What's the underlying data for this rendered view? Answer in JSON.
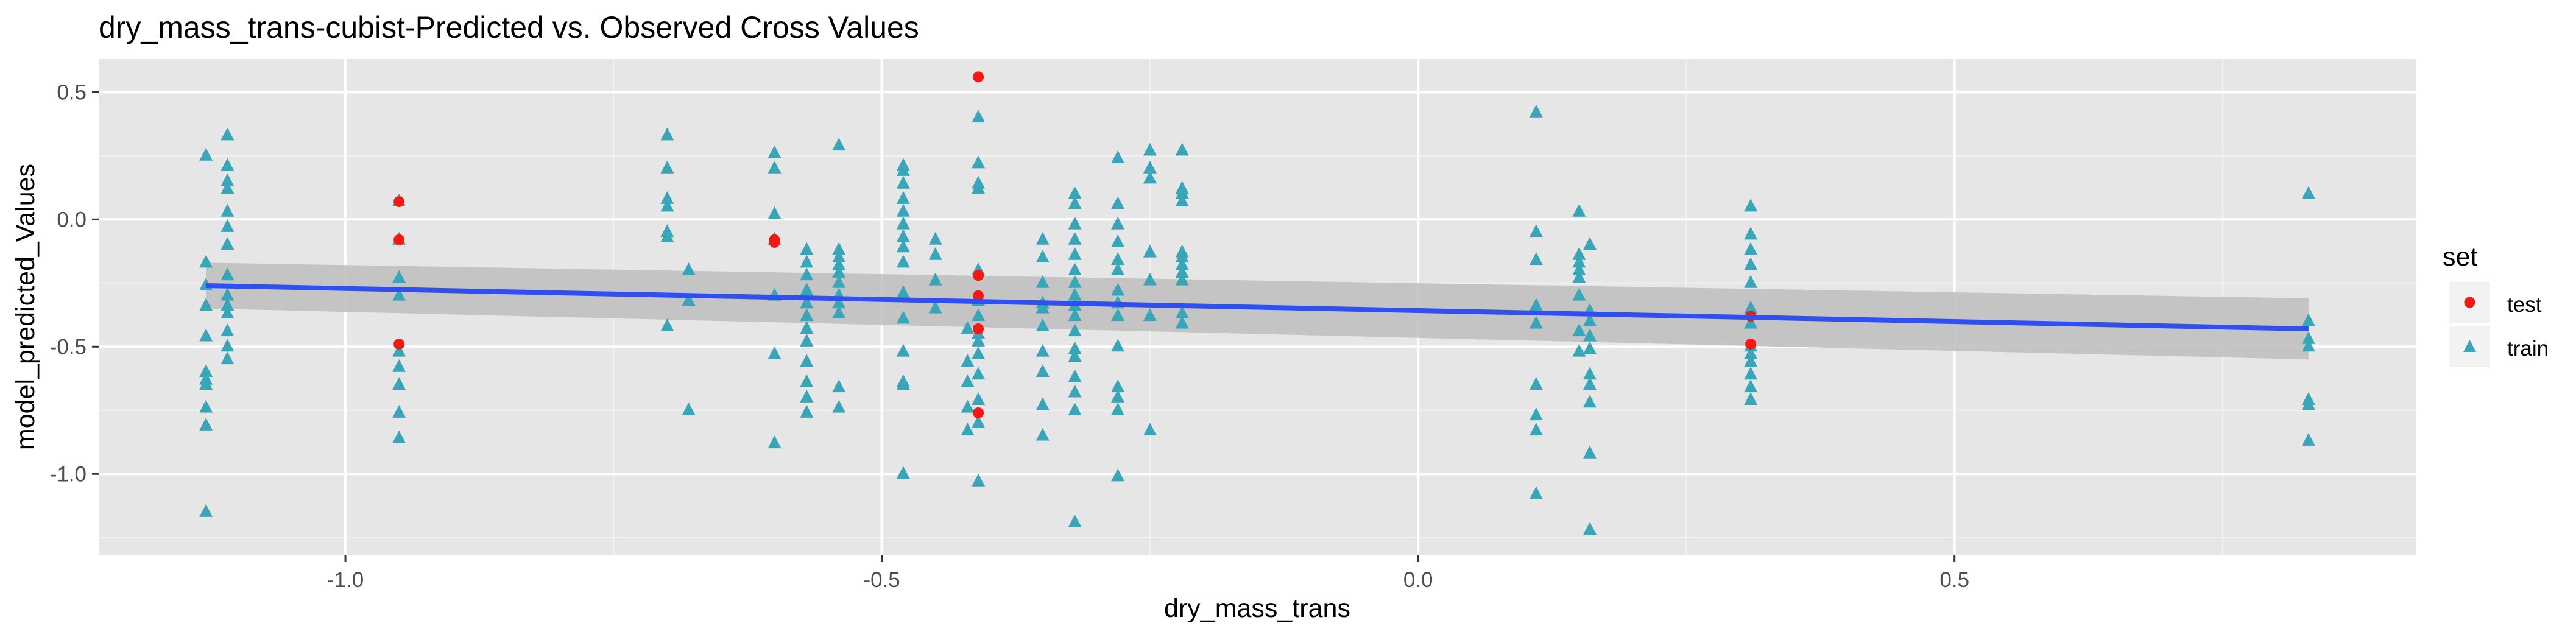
{
  "chart_data": {
    "type": "scatter",
    "title": "dry_mass_trans-cubist-Predicted vs. Observed Cross Values",
    "xlabel": "dry_mass_trans",
    "ylabel": "model_predicted_Values",
    "xlim": [
      -1.23,
      0.93
    ],
    "ylim": [
      -1.32,
      0.63
    ],
    "x_ticks": [
      -1.0,
      -0.5,
      0.0,
      0.5
    ],
    "x_tick_labels": [
      "-1.0",
      "-0.5",
      "0.0",
      "0.5"
    ],
    "y_ticks": [
      0.5,
      0.0,
      -0.5,
      -1.0
    ],
    "y_tick_labels": [
      "0.5",
      "0.0",
      "-0.5",
      "-1.0"
    ],
    "grid": true,
    "legend": {
      "title": "set",
      "position": "right",
      "entries": [
        {
          "label": "test",
          "shape": "circle",
          "color": "#F8180F"
        },
        {
          "label": "train",
          "shape": "triangle",
          "color": "#37A6B8"
        }
      ]
    },
    "colors": {
      "panel_background": "#E6E6E6",
      "grid": "#FFFFFF",
      "test": "#F8180F",
      "train": "#37A6B8",
      "trend_line": "#2F4FF0",
      "confidence_band": "#BDBDBD"
    },
    "trend": {
      "method": "linear",
      "x": [
        -1.13,
        0.83
      ],
      "y": [
        -0.26,
        -0.43
      ],
      "se_lower": [
        -0.35,
        -0.55
      ],
      "se_upper": [
        -0.17,
        -0.31
      ]
    },
    "series": [
      {
        "name": "train",
        "marker": "triangle",
        "points": [
          [
            -1.13,
            0.25
          ],
          [
            -1.13,
            -0.17
          ],
          [
            -1.13,
            -0.26
          ],
          [
            -1.13,
            -0.34
          ],
          [
            -1.13,
            -0.46
          ],
          [
            -1.13,
            -0.6
          ],
          [
            -1.13,
            -0.63
          ],
          [
            -1.13,
            -0.65
          ],
          [
            -1.13,
            -0.74
          ],
          [
            -1.13,
            -0.81
          ],
          [
            -1.13,
            -1.15
          ],
          [
            -1.11,
            0.33
          ],
          [
            -1.11,
            0.21
          ],
          [
            -1.11,
            0.15
          ],
          [
            -1.11,
            0.12
          ],
          [
            -1.11,
            0.03
          ],
          [
            -1.11,
            -0.03
          ],
          [
            -1.11,
            -0.1
          ],
          [
            -1.11,
            -0.22
          ],
          [
            -1.11,
            -0.3
          ],
          [
            -1.11,
            -0.34
          ],
          [
            -1.11,
            -0.37
          ],
          [
            -1.11,
            -0.44
          ],
          [
            -1.11,
            -0.5
          ],
          [
            -1.11,
            -0.55
          ],
          [
            -0.95,
            0.07
          ],
          [
            -0.95,
            -0.08
          ],
          [
            -0.95,
            -0.23
          ],
          [
            -0.95,
            -0.3
          ],
          [
            -0.95,
            -0.52
          ],
          [
            -0.95,
            -0.58
          ],
          [
            -0.95,
            -0.65
          ],
          [
            -0.95,
            -0.76
          ],
          [
            -0.95,
            -0.86
          ],
          [
            -0.7,
            0.33
          ],
          [
            -0.7,
            0.2
          ],
          [
            -0.7,
            0.08
          ],
          [
            -0.7,
            0.05
          ],
          [
            -0.7,
            -0.05
          ],
          [
            -0.7,
            -0.07
          ],
          [
            -0.7,
            -0.42
          ],
          [
            -0.68,
            -0.2
          ],
          [
            -0.68,
            -0.32
          ],
          [
            -0.68,
            -0.75
          ],
          [
            -0.6,
            0.26
          ],
          [
            -0.6,
            0.2
          ],
          [
            -0.6,
            0.02
          ],
          [
            -0.6,
            -0.08
          ],
          [
            -0.6,
            -0.3
          ],
          [
            -0.6,
            -0.53
          ],
          [
            -0.6,
            -0.88
          ],
          [
            -0.57,
            -0.12
          ],
          [
            -0.57,
            -0.17
          ],
          [
            -0.57,
            -0.22
          ],
          [
            -0.57,
            -0.28
          ],
          [
            -0.57,
            -0.33
          ],
          [
            -0.57,
            -0.38
          ],
          [
            -0.57,
            -0.43
          ],
          [
            -0.57,
            -0.48
          ],
          [
            -0.57,
            -0.56
          ],
          [
            -0.57,
            -0.64
          ],
          [
            -0.57,
            -0.7
          ],
          [
            -0.57,
            -0.76
          ],
          [
            -0.54,
            0.29
          ],
          [
            -0.54,
            -0.12
          ],
          [
            -0.54,
            -0.15
          ],
          [
            -0.54,
            -0.18
          ],
          [
            -0.54,
            -0.21
          ],
          [
            -0.54,
            -0.25
          ],
          [
            -0.54,
            -0.3
          ],
          [
            -0.54,
            -0.33
          ],
          [
            -0.54,
            -0.37
          ],
          [
            -0.54,
            -0.66
          ],
          [
            -0.54,
            -0.74
          ],
          [
            -0.48,
            0.21
          ],
          [
            -0.48,
            0.19
          ],
          [
            -0.48,
            0.14
          ],
          [
            -0.48,
            0.08
          ],
          [
            -0.48,
            0.03
          ],
          [
            -0.48,
            -0.02
          ],
          [
            -0.48,
            -0.07
          ],
          [
            -0.48,
            -0.11
          ],
          [
            -0.48,
            -0.17
          ],
          [
            -0.48,
            -0.29
          ],
          [
            -0.48,
            -0.39
          ],
          [
            -0.48,
            -0.52
          ],
          [
            -0.48,
            -0.64
          ],
          [
            -0.48,
            -0.65
          ],
          [
            -0.48,
            -1.0
          ],
          [
            -0.45,
            -0.08
          ],
          [
            -0.45,
            -0.14
          ],
          [
            -0.45,
            -0.24
          ],
          [
            -0.45,
            -0.35
          ],
          [
            -0.41,
            0.4
          ],
          [
            -0.41,
            0.22
          ],
          [
            -0.41,
            0.14
          ],
          [
            -0.41,
            0.12
          ],
          [
            -0.41,
            -0.2
          ],
          [
            -0.41,
            -0.32
          ],
          [
            -0.41,
            -0.38
          ],
          [
            -0.41,
            -0.45
          ],
          [
            -0.41,
            -0.48
          ],
          [
            -0.41,
            -0.53
          ],
          [
            -0.41,
            -0.61
          ],
          [
            -0.41,
            -0.71
          ],
          [
            -0.41,
            -0.8
          ],
          [
            -0.41,
            -1.03
          ],
          [
            -0.42,
            -0.43
          ],
          [
            -0.42,
            -0.56
          ],
          [
            -0.42,
            -0.64
          ],
          [
            -0.42,
            -0.74
          ],
          [
            -0.42,
            -0.83
          ],
          [
            -0.35,
            -0.08
          ],
          [
            -0.35,
            -0.15
          ],
          [
            -0.35,
            -0.25
          ],
          [
            -0.35,
            -0.33
          ],
          [
            -0.35,
            -0.35
          ],
          [
            -0.35,
            -0.42
          ],
          [
            -0.35,
            -0.52
          ],
          [
            -0.35,
            -0.6
          ],
          [
            -0.35,
            -0.73
          ],
          [
            -0.35,
            -0.85
          ],
          [
            -0.32,
            0.1
          ],
          [
            -0.32,
            0.06
          ],
          [
            -0.32,
            -0.02
          ],
          [
            -0.32,
            -0.08
          ],
          [
            -0.32,
            -0.14
          ],
          [
            -0.32,
            -0.2
          ],
          [
            -0.32,
            -0.25
          ],
          [
            -0.32,
            -0.3
          ],
          [
            -0.32,
            -0.34
          ],
          [
            -0.32,
            -0.38
          ],
          [
            -0.32,
            -0.44
          ],
          [
            -0.32,
            -0.51
          ],
          [
            -0.32,
            -0.54
          ],
          [
            -0.32,
            -0.62
          ],
          [
            -0.32,
            -0.68
          ],
          [
            -0.32,
            -0.75
          ],
          [
            -0.32,
            -1.19
          ],
          [
            -0.28,
            0.24
          ],
          [
            -0.28,
            0.06
          ],
          [
            -0.28,
            -0.02
          ],
          [
            -0.28,
            -0.09
          ],
          [
            -0.28,
            -0.16
          ],
          [
            -0.28,
            -0.2
          ],
          [
            -0.28,
            -0.28
          ],
          [
            -0.28,
            -0.33
          ],
          [
            -0.28,
            -0.38
          ],
          [
            -0.28,
            -0.5
          ],
          [
            -0.28,
            -0.66
          ],
          [
            -0.28,
            -0.7
          ],
          [
            -0.28,
            -0.75
          ],
          [
            -0.28,
            -1.01
          ],
          [
            -0.25,
            0.27
          ],
          [
            -0.25,
            0.2
          ],
          [
            -0.25,
            0.16
          ],
          [
            -0.25,
            -0.13
          ],
          [
            -0.25,
            -0.24
          ],
          [
            -0.25,
            -0.38
          ],
          [
            -0.25,
            -0.83
          ],
          [
            -0.22,
            0.27
          ],
          [
            -0.22,
            0.12
          ],
          [
            -0.22,
            0.1
          ],
          [
            -0.22,
            0.07
          ],
          [
            -0.22,
            -0.13
          ],
          [
            -0.22,
            -0.15
          ],
          [
            -0.22,
            -0.18
          ],
          [
            -0.22,
            -0.21
          ],
          [
            -0.22,
            -0.24
          ],
          [
            -0.22,
            -0.37
          ],
          [
            -0.22,
            -0.41
          ],
          [
            0.11,
            0.42
          ],
          [
            0.11,
            -0.05
          ],
          [
            0.11,
            -0.16
          ],
          [
            0.11,
            -0.34
          ],
          [
            0.11,
            -0.41
          ],
          [
            0.11,
            -0.65
          ],
          [
            0.11,
            -0.77
          ],
          [
            0.11,
            -0.83
          ],
          [
            0.11,
            -1.08
          ],
          [
            0.15,
            0.03
          ],
          [
            0.15,
            -0.14
          ],
          [
            0.15,
            -0.17
          ],
          [
            0.15,
            -0.2
          ],
          [
            0.15,
            -0.23
          ],
          [
            0.15,
            -0.3
          ],
          [
            0.15,
            -0.44
          ],
          [
            0.15,
            -0.52
          ],
          [
            0.16,
            -0.1
          ],
          [
            0.16,
            -0.36
          ],
          [
            0.16,
            -0.4
          ],
          [
            0.16,
            -0.46
          ],
          [
            0.16,
            -0.51
          ],
          [
            0.16,
            -0.61
          ],
          [
            0.16,
            -0.65
          ],
          [
            0.16,
            -0.72
          ],
          [
            0.16,
            -0.92
          ],
          [
            0.16,
            -1.22
          ],
          [
            0.31,
            0.05
          ],
          [
            0.31,
            -0.06
          ],
          [
            0.31,
            -0.12
          ],
          [
            0.31,
            -0.18
          ],
          [
            0.31,
            -0.25
          ],
          [
            0.31,
            -0.35
          ],
          [
            0.31,
            -0.41
          ],
          [
            0.31,
            -0.5
          ],
          [
            0.31,
            -0.53
          ],
          [
            0.31,
            -0.56
          ],
          [
            0.31,
            -0.61
          ],
          [
            0.31,
            -0.66
          ],
          [
            0.31,
            -0.71
          ],
          [
            0.83,
            0.1
          ],
          [
            0.83,
            -0.4
          ],
          [
            0.83,
            -0.47
          ],
          [
            0.83,
            -0.5
          ],
          [
            0.83,
            -0.71
          ],
          [
            0.83,
            -0.73
          ],
          [
            0.83,
            -0.87
          ]
        ]
      },
      {
        "name": "test",
        "marker": "circle",
        "points": [
          [
            -0.95,
            0.07
          ],
          [
            -0.95,
            -0.08
          ],
          [
            -0.95,
            -0.49
          ],
          [
            -0.6,
            -0.08
          ],
          [
            -0.6,
            -0.09
          ],
          [
            -0.41,
            0.56
          ],
          [
            -0.41,
            -0.22
          ],
          [
            -0.41,
            -0.3
          ],
          [
            -0.41,
            -0.43
          ],
          [
            -0.41,
            -0.76
          ],
          [
            0.31,
            -0.38
          ],
          [
            0.31,
            -0.49
          ]
        ]
      }
    ]
  }
}
